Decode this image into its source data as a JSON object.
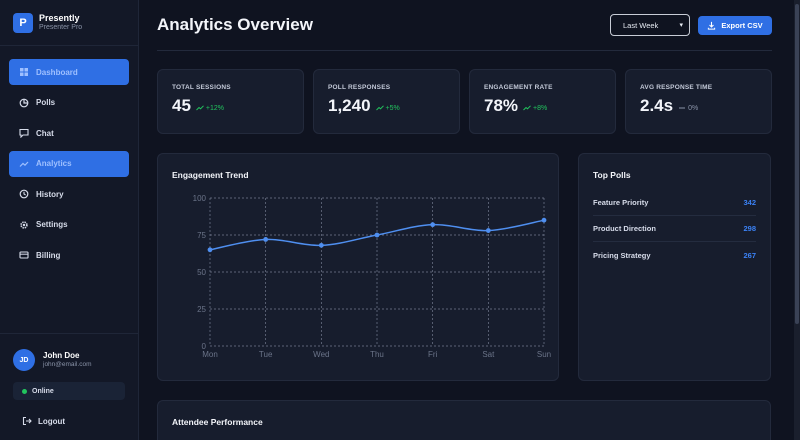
{
  "brand": {
    "logo_letter": "P",
    "name": "Presently",
    "subtitle": "Presenter Pro"
  },
  "sidebar": {
    "items": [
      {
        "label": "Dashboard",
        "icon": "grid-icon",
        "active": true
      },
      {
        "label": "Polls",
        "icon": "pie-chart-icon",
        "active": false
      },
      {
        "label": "Chat",
        "icon": "chat-bubble-icon",
        "active": false
      },
      {
        "label": "Analytics",
        "icon": "trend-icon",
        "active": true
      },
      {
        "label": "History",
        "icon": "history-icon",
        "active": false
      },
      {
        "label": "Settings",
        "icon": "gear-icon",
        "active": false
      },
      {
        "label": "Billing",
        "icon": "card-icon",
        "active": false
      }
    ]
  },
  "user": {
    "initials": "JD",
    "name": "John Doe",
    "email": "john@email.com",
    "status": "Online",
    "logout_label": "Logout"
  },
  "header": {
    "title": "Analytics Overview",
    "period": "Last Week",
    "export_label": "Export CSV"
  },
  "stats": [
    {
      "label": "TOTAL SESSIONS",
      "value": "45",
      "delta": "+12%",
      "trend": "up"
    },
    {
      "label": "POLL RESPONSES",
      "value": "1,240",
      "delta": "+5%",
      "trend": "up"
    },
    {
      "label": "ENGAGEMENT RATE",
      "value": "78%",
      "delta": "+8%",
      "trend": "up"
    },
    {
      "label": "AVG RESPONSE TIME",
      "value": "2.4s",
      "delta": "0%",
      "trend": "flat"
    }
  ],
  "chart_data": {
    "type": "line",
    "title": "Engagement Trend",
    "categories": [
      "Mon",
      "Tue",
      "Wed",
      "Thu",
      "Fri",
      "Sat",
      "Sun"
    ],
    "series": [
      {
        "values": [
          65,
          72,
          68,
          75,
          82,
          78,
          85
        ]
      }
    ],
    "ylim": [
      0,
      100
    ],
    "yticks": [
      0,
      25,
      50,
      75,
      100
    ],
    "grid": true,
    "line_color": "#4f8ff0"
  },
  "top_polls": {
    "title": "Top Polls",
    "items": [
      {
        "name": "Feature Priority",
        "count": "342"
      },
      {
        "name": "Product Direction",
        "count": "298"
      },
      {
        "name": "Pricing Strategy",
        "count": "267"
      }
    ]
  },
  "attendee": {
    "title": "Attendee Performance"
  },
  "colors": {
    "accent": "#2f6fe4",
    "positive": "#22c55e",
    "count": "#3b82f6"
  }
}
